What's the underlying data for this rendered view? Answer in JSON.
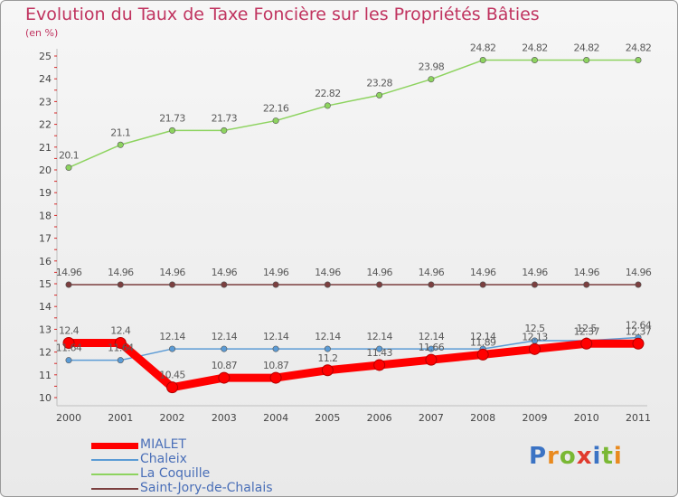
{
  "header": {
    "title": "Evolution du Taux de Taxe Foncière sur les Propriétés Bâties",
    "unit": "(en %)"
  },
  "logo": {
    "letters": [
      "P",
      "r",
      "o",
      "x",
      "i",
      "t",
      "i"
    ],
    "colors": [
      "#3b73c4",
      "#e98a1e",
      "#7ab834",
      "#e03a2e",
      "#3b73c4",
      "#7ab834",
      "#e98a1e"
    ]
  },
  "chart_data": {
    "type": "line",
    "title": "Evolution du Taux de Taxe Foncière sur les Propriétés Bâties",
    "ylabel": "(en %)",
    "xlabel": "",
    "ylim": [
      10,
      25
    ],
    "yticks": [
      10,
      11,
      12,
      13,
      14,
      15,
      16,
      17,
      18,
      19,
      20,
      21,
      22,
      23,
      24,
      25
    ],
    "categories": [
      "2000",
      "2001",
      "2002",
      "2003",
      "2004",
      "2005",
      "2006",
      "2007",
      "2008",
      "2009",
      "2010",
      "2011"
    ],
    "grid": false,
    "legend": "bottom-left",
    "series": [
      {
        "name": "MIALET",
        "color": "#ff0000",
        "values": [
          12.4,
          12.4,
          10.45,
          10.87,
          10.87,
          11.2,
          11.43,
          11.66,
          11.89,
          12.13,
          12.37,
          12.37
        ],
        "labels": [
          "12.4",
          "12.4",
          "10.45",
          "10.87",
          "10.87",
          "11.2",
          "11.43",
          "11.66",
          "11.89",
          "12.13",
          "12.37",
          "12.37"
        ]
      },
      {
        "name": "Chaleix",
        "color": "#5b9bd5",
        "values": [
          11.64,
          11.64,
          12.14,
          12.14,
          12.14,
          12.14,
          12.14,
          12.14,
          12.14,
          12.5,
          12.5,
          12.64
        ],
        "labels": [
          "11.64",
          "11.64",
          "12.14",
          "12.14",
          "12.14",
          "12.14",
          "12.14",
          "12.14",
          "12.14",
          "12.5",
          "12.5",
          "12.64"
        ]
      },
      {
        "name": "La Coquille",
        "color": "#8dd35f",
        "values": [
          20.1,
          21.1,
          21.73,
          21.73,
          22.16,
          22.82,
          23.28,
          23.98,
          24.82,
          24.82,
          24.82,
          24.82
        ],
        "labels": [
          "20.1",
          "21.1",
          "21.73",
          "21.73",
          "22.16",
          "22.82",
          "23.28",
          "23.98",
          "24.82",
          "24.82",
          "24.82",
          "24.82"
        ]
      },
      {
        "name": "Saint-Jory-de-Chalais",
        "color": "#7b3f3f",
        "values": [
          14.96,
          14.96,
          14.96,
          14.96,
          14.96,
          14.96,
          14.96,
          14.96,
          14.96,
          14.96,
          14.96,
          14.96
        ],
        "labels": [
          "14.96",
          "14.96",
          "14.96",
          "14.96",
          "14.96",
          "14.96",
          "14.96",
          "14.96",
          "14.96",
          "14.96",
          "14.96",
          "14.96"
        ]
      }
    ]
  }
}
